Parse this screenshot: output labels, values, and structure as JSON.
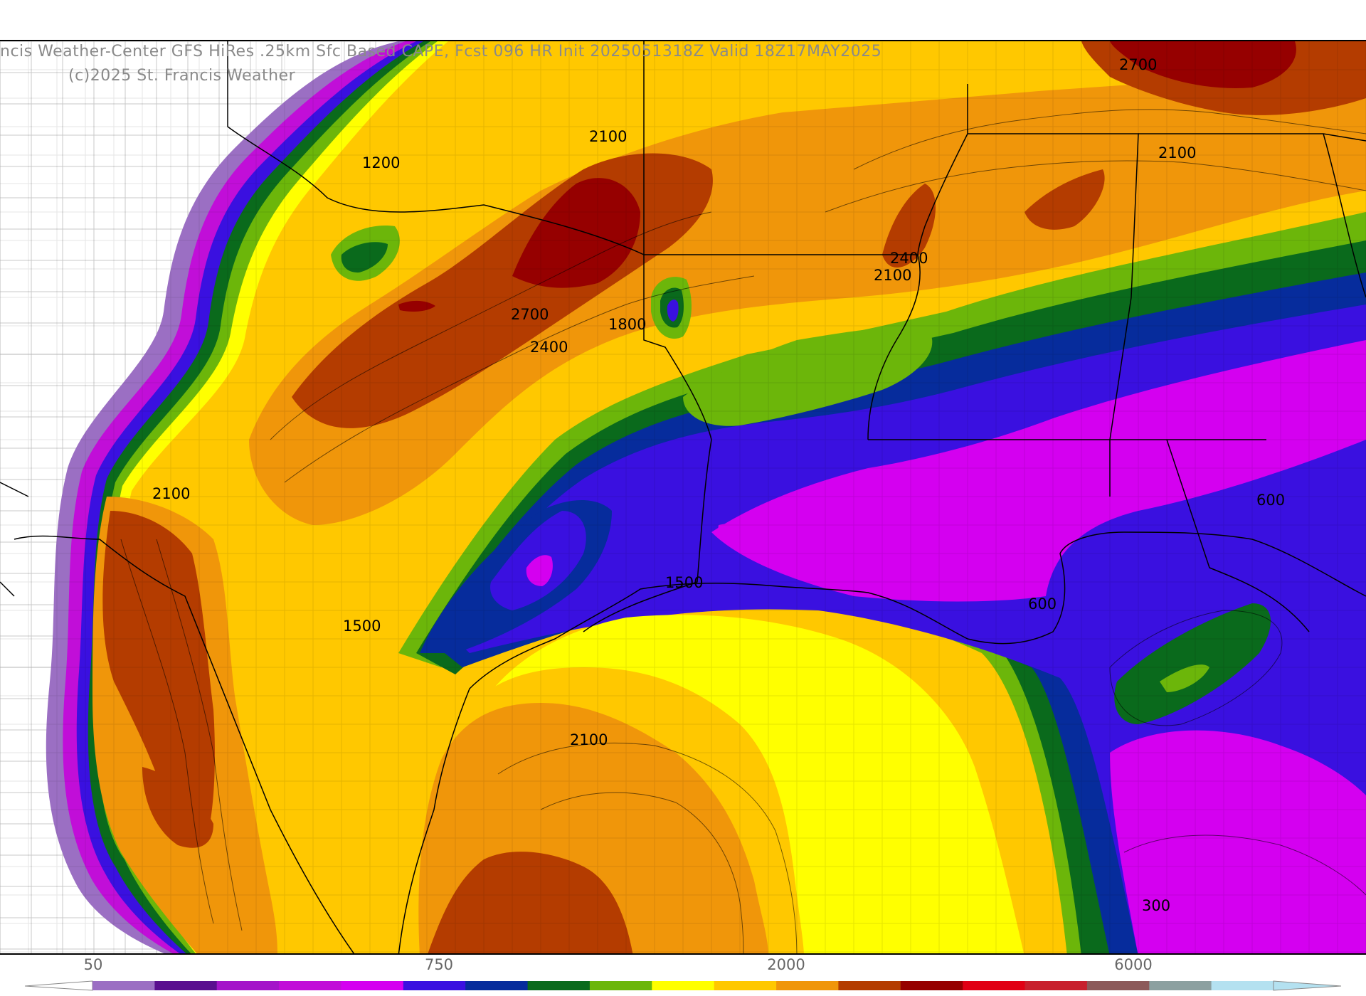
{
  "header": {
    "title": "ncis Weather-Center GFS HiRes .25km Sfc Based CAPE, Fcst 096 HR Init 2025051318Z  Valid 18Z17MAY2025",
    "copyright": "(c)2025 St. Francis Weather"
  },
  "contour_labels": [
    {
      "text": "2700"
    },
    {
      "text": "2100"
    },
    {
      "text": "1200"
    },
    {
      "text": "2100"
    },
    {
      "text": "2400"
    },
    {
      "text": "2100"
    },
    {
      "text": "2700"
    },
    {
      "text": "1800"
    },
    {
      "text": "2400"
    },
    {
      "text": "2100"
    },
    {
      "text": "600"
    },
    {
      "text": "1500"
    },
    {
      "text": "600"
    },
    {
      "text": "1500"
    },
    {
      "text": "2100"
    },
    {
      "text": "300"
    }
  ],
  "colorbar": {
    "tick_labels": [
      "50",
      "750",
      "2000",
      "6000"
    ],
    "colors": [
      "#9b6fc3",
      "#5a0f8f",
      "#a415c9",
      "#c10ed8",
      "#d400f0",
      "#3a10e0",
      "#062c9c",
      "#0a6a1c",
      "#6cb60a",
      "#ffff00",
      "#ffc800",
      "#f0960a",
      "#b43c00",
      "#960000",
      "#e10014",
      "#c8202d",
      "#8c5a5a",
      "#8ca0a0",
      "#b4e1f0"
    ]
  },
  "legend_colors": {
    "light_purple": "#9b6fc3",
    "purple": "#c10ed8",
    "blue": "#3a10e0",
    "navy": "#062c9c",
    "dark_green": "#0a6a1c",
    "green": "#6cb60a",
    "yellow": "#ffff00",
    "gold": "#ffc800",
    "orange": "#f0960a",
    "rust": "#b43c00",
    "dark_red": "#960000"
  }
}
